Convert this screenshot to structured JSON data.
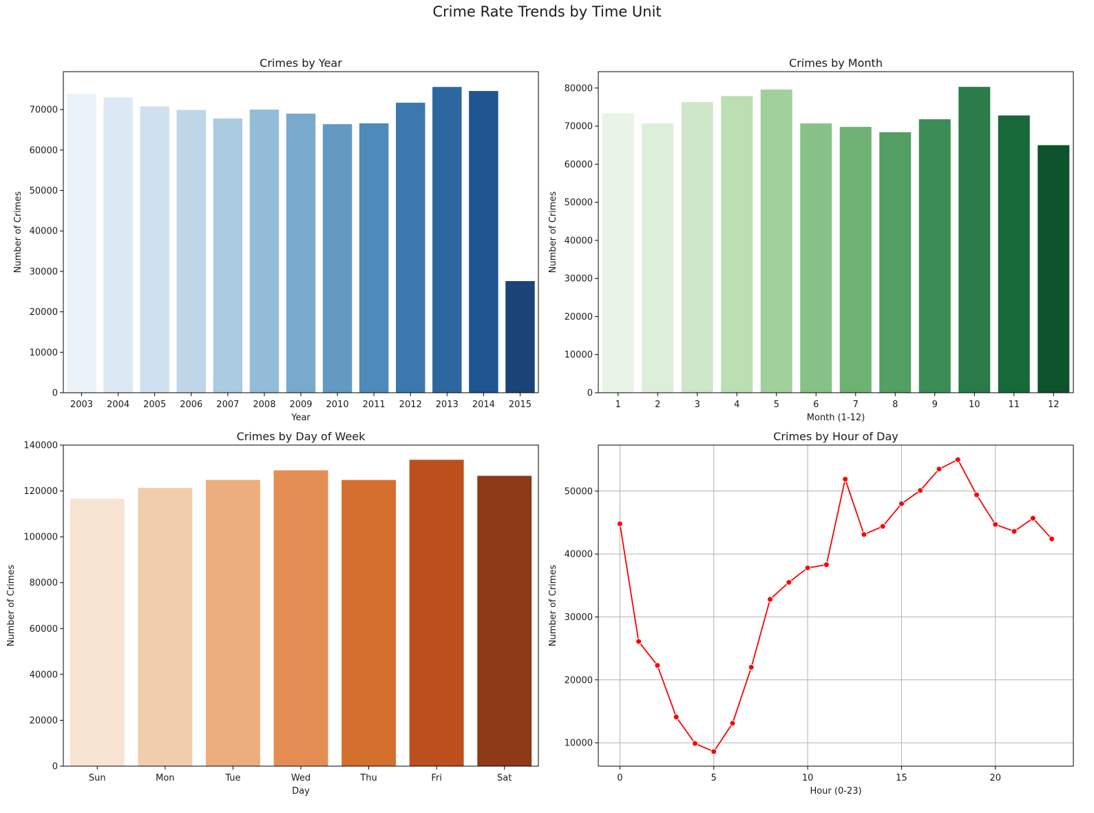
{
  "suptitle": "Crime Rate Trends by Time Unit",
  "chart_data": [
    {
      "id": "year",
      "type": "bar",
      "title": "Crimes by Year",
      "xlabel": "Year",
      "ylabel": "Number of Crimes",
      "categories": [
        "2003",
        "2004",
        "2005",
        "2006",
        "2007",
        "2008",
        "2009",
        "2010",
        "2011",
        "2012",
        "2013",
        "2014",
        "2015"
      ],
      "values": [
        73900,
        73000,
        70800,
        69900,
        67800,
        70000,
        69000,
        66400,
        66600,
        71700,
        75600,
        74600,
        27600
      ],
      "ylim": [
        0,
        79380
      ],
      "yticks": [
        0,
        10000,
        20000,
        30000,
        40000,
        50000,
        60000,
        70000
      ],
      "palette": "Blues",
      "colors": [
        "#eaf2fa",
        "#dce9f5",
        "#cfe0ef",
        "#bed6e8",
        "#abcbe1",
        "#93bcd8",
        "#79a9cc",
        "#639ac2",
        "#4f8bba",
        "#3b78ad",
        "#2d67a0",
        "#1f5591",
        "#1b4378"
      ],
      "grid": false
    },
    {
      "id": "month",
      "type": "bar",
      "title": "Crimes by Month",
      "xlabel": "Month (1-12)",
      "ylabel": "Number of Crimes",
      "categories": [
        "1",
        "2",
        "3",
        "4",
        "5",
        "6",
        "7",
        "8",
        "9",
        "10",
        "11",
        "12"
      ],
      "values": [
        73400,
        70700,
        76300,
        77900,
        79600,
        70700,
        69800,
        68400,
        71800,
        80300,
        72800,
        65000
      ],
      "ylim": [
        0,
        84300
      ],
      "yticks": [
        0,
        10000,
        20000,
        30000,
        40000,
        50000,
        60000,
        70000,
        80000
      ],
      "palette": "Greens",
      "colors": [
        "#e8f5e6",
        "#dcefd9",
        "#cde7c8",
        "#bbdeb3",
        "#a2d09c",
        "#88c187",
        "#6eb173",
        "#549f64",
        "#3c8c55",
        "#2b7b4a",
        "#18693a",
        "#0d532b"
      ],
      "grid": false
    },
    {
      "id": "dow",
      "type": "bar",
      "title": "Crimes by Day of Week",
      "xlabel": "Day",
      "ylabel": "Number of Crimes",
      "categories": [
        "Sun",
        "Mon",
        "Tue",
        "Wed",
        "Thu",
        "Fri",
        "Sat"
      ],
      "values": [
        116600,
        121300,
        124800,
        129000,
        124800,
        133600,
        126600
      ],
      "ylim": [
        0,
        140000
      ],
      "yticks": [
        0,
        20000,
        40000,
        60000,
        80000,
        100000,
        120000,
        140000
      ],
      "palette": "Oranges",
      "colors": [
        "#f7e4d2",
        "#f2cdac",
        "#ebae7c",
        "#e58e53",
        "#d46f2e",
        "#bc501c",
        "#8e3a17"
      ],
      "grid": false
    },
    {
      "id": "hour",
      "type": "line",
      "title": "Crimes by Hour of Day",
      "xlabel": "Hour (0-23)",
      "ylabel": "Number of Crimes",
      "x": [
        0,
        1,
        2,
        3,
        4,
        5,
        6,
        7,
        8,
        9,
        10,
        11,
        12,
        13,
        14,
        15,
        16,
        17,
        18,
        19,
        20,
        21,
        22,
        23
      ],
      "values": [
        44800,
        26100,
        22300,
        14100,
        9900,
        8600,
        13100,
        22000,
        32800,
        35500,
        37800,
        38300,
        51900,
        43100,
        44400,
        48000,
        50100,
        53500,
        55000,
        49400,
        44700,
        43600,
        45700,
        42400
      ],
      "xlim": [
        -1.15,
        24.15
      ],
      "ylim": [
        6285,
        57315
      ],
      "xticks": [
        0,
        5,
        10,
        15,
        20
      ],
      "yticks": [
        10000,
        20000,
        30000,
        40000,
        50000
      ],
      "color": "#ff0000",
      "marker": "circle",
      "grid": true
    }
  ]
}
